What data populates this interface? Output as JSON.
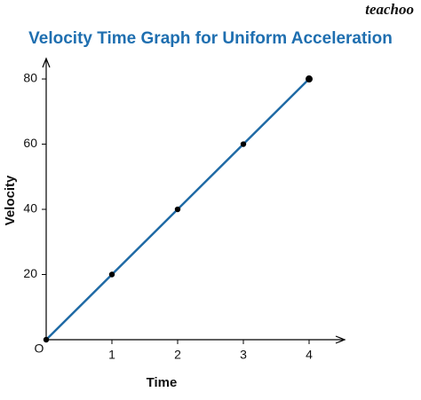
{
  "chart_data": {
    "type": "line",
    "title": "Velocity Time Graph for Uniform Acceleration",
    "watermark": "teachoo",
    "x_label": "Time",
    "y_label": "Velocity",
    "origin_label": "O",
    "x": [
      0,
      1,
      2,
      3,
      4
    ],
    "values": [
      0,
      20,
      40,
      60,
      80
    ],
    "line_color": "#1f6aa5",
    "marker_color": "#000000",
    "xlim": [
      0,
      4.5
    ],
    "ylim": [
      0,
      86
    ],
    "xticks": [
      1,
      2,
      3,
      4
    ],
    "yticks": [
      20,
      40,
      60,
      80
    ],
    "grid": false
  }
}
